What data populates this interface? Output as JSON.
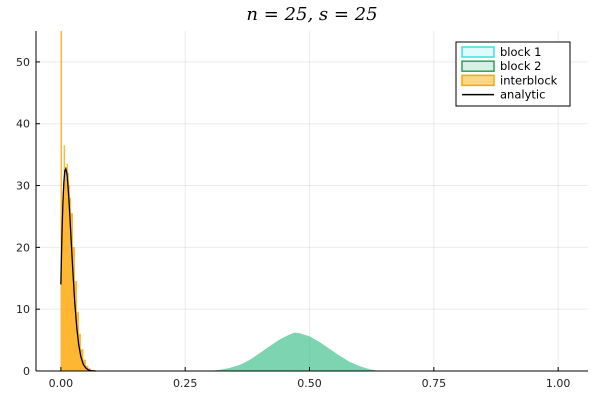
{
  "chart_data": {
    "type": "area",
    "title": "n = 25, s = 25",
    "xlabel": "",
    "ylabel": "",
    "xlim": [
      -0.05,
      1.06
    ],
    "ylim": [
      0,
      55
    ],
    "xticks": [
      0.0,
      0.25,
      0.5,
      0.75,
      1.0
    ],
    "xtick_labels": [
      "0.00",
      "0.25",
      "0.50",
      "0.75",
      "1.00"
    ],
    "yticks": [
      0,
      10,
      20,
      30,
      40,
      50
    ],
    "ytick_labels": [
      "0",
      "10",
      "20",
      "30",
      "40",
      "50"
    ],
    "grid": true,
    "legend_position": "top-right",
    "legend": [
      {
        "label": "block 1",
        "kind": "patch",
        "fill": "#e0fbfb",
        "stroke": "#40e0e0"
      },
      {
        "label": "block 2",
        "kind": "patch",
        "fill": "#d6f1e3",
        "stroke": "#27a35a"
      },
      {
        "label": "interblock",
        "kind": "patch",
        "fill": "#ffd58a",
        "stroke": "#ffa500"
      },
      {
        "label": "analytic",
        "kind": "line",
        "stroke": "#000000"
      }
    ],
    "series": [
      {
        "name": "block 1",
        "color": "#40e0d0",
        "x": [
          0.3,
          0.32,
          0.34,
          0.36,
          0.38,
          0.4,
          0.42,
          0.44,
          0.46,
          0.47,
          0.48,
          0.5,
          0.52,
          0.54,
          0.56,
          0.58,
          0.6,
          0.62,
          0.64
        ],
        "y": [
          0.0,
          0.2,
          0.5,
          1.0,
          1.8,
          2.9,
          4.0,
          5.1,
          5.9,
          6.2,
          6.1,
          5.6,
          4.7,
          3.6,
          2.5,
          1.5,
          0.8,
          0.3,
          0.0
        ]
      },
      {
        "name": "block 2",
        "color": "#3cb371",
        "x": [
          0.3,
          0.32,
          0.34,
          0.36,
          0.38,
          0.4,
          0.42,
          0.44,
          0.46,
          0.47,
          0.48,
          0.5,
          0.52,
          0.54,
          0.56,
          0.58,
          0.6,
          0.62,
          0.64
        ],
        "y": [
          0.0,
          0.2,
          0.5,
          1.0,
          1.8,
          2.9,
          4.0,
          5.1,
          5.9,
          6.2,
          6.1,
          5.6,
          4.7,
          3.6,
          2.5,
          1.5,
          0.8,
          0.3,
          0.0
        ]
      },
      {
        "name": "interblock",
        "color": "#ffa500",
        "x": [
          0.0,
          0.002,
          0.004,
          0.006,
          0.008,
          0.01,
          0.012,
          0.014,
          0.016,
          0.018,
          0.02,
          0.024,
          0.028,
          0.032,
          0.036,
          0.04,
          0.045,
          0.05,
          0.055,
          0.06,
          0.07
        ],
        "y": [
          55.0,
          22.0,
          29.0,
          36.5,
          33.0,
          31.0,
          33.5,
          32.0,
          30.0,
          28.0,
          25.5,
          20.0,
          14.5,
          9.5,
          6.0,
          3.5,
          1.8,
          0.8,
          0.4,
          0.1,
          0.0
        ]
      },
      {
        "name": "analytic",
        "color": "#000000",
        "x": [
          0.0,
          0.002,
          0.004,
          0.006,
          0.008,
          0.01,
          0.012,
          0.014,
          0.016,
          0.018,
          0.02,
          0.024,
          0.028,
          0.032,
          0.036,
          0.04,
          0.045,
          0.05,
          0.055,
          0.06,
          0.07
        ],
        "y": [
          14.0,
          21.5,
          27.0,
          30.5,
          32.4,
          32.7,
          32.0,
          30.3,
          28.0,
          25.2,
          22.2,
          16.3,
          11.0,
          7.0,
          4.2,
          2.4,
          1.1,
          0.5,
          0.2,
          0.05,
          0.0
        ]
      }
    ]
  }
}
